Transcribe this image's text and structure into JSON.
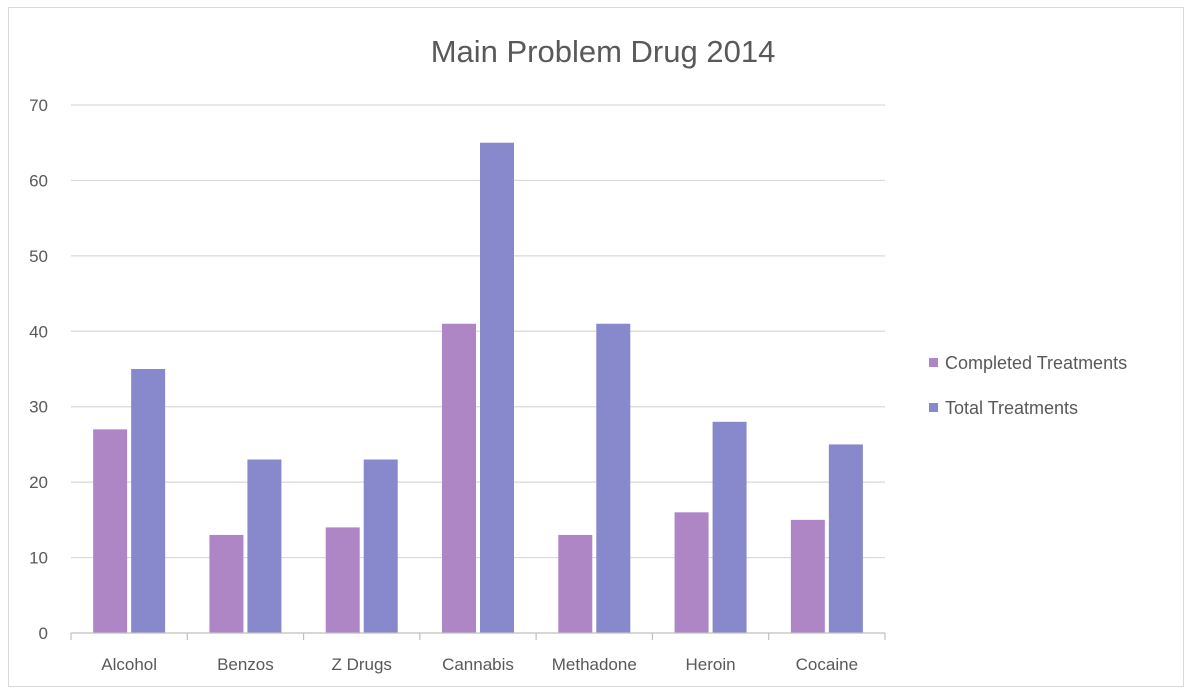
{
  "chart_data": {
    "type": "bar",
    "title": "Main Problem Drug 2014",
    "categories": [
      "Alcohol",
      "Benzos",
      "Z Drugs",
      "Cannabis",
      "Methadone",
      "Heroin",
      "Cocaine"
    ],
    "series": [
      {
        "name": "Completed Treatments",
        "color": "#ae86c6",
        "values": [
          27,
          13,
          14,
          41,
          13,
          16,
          15
        ]
      },
      {
        "name": "Total Treatments",
        "color": "#8888cc",
        "values": [
          35,
          23,
          23,
          65,
          41,
          28,
          25
        ]
      }
    ],
    "y_ticks": [
      "0",
      "10",
      "20",
      "30",
      "40",
      "50",
      "60",
      "70"
    ],
    "ylim": [
      0,
      70
    ],
    "grid": true,
    "legend_position": "right"
  }
}
